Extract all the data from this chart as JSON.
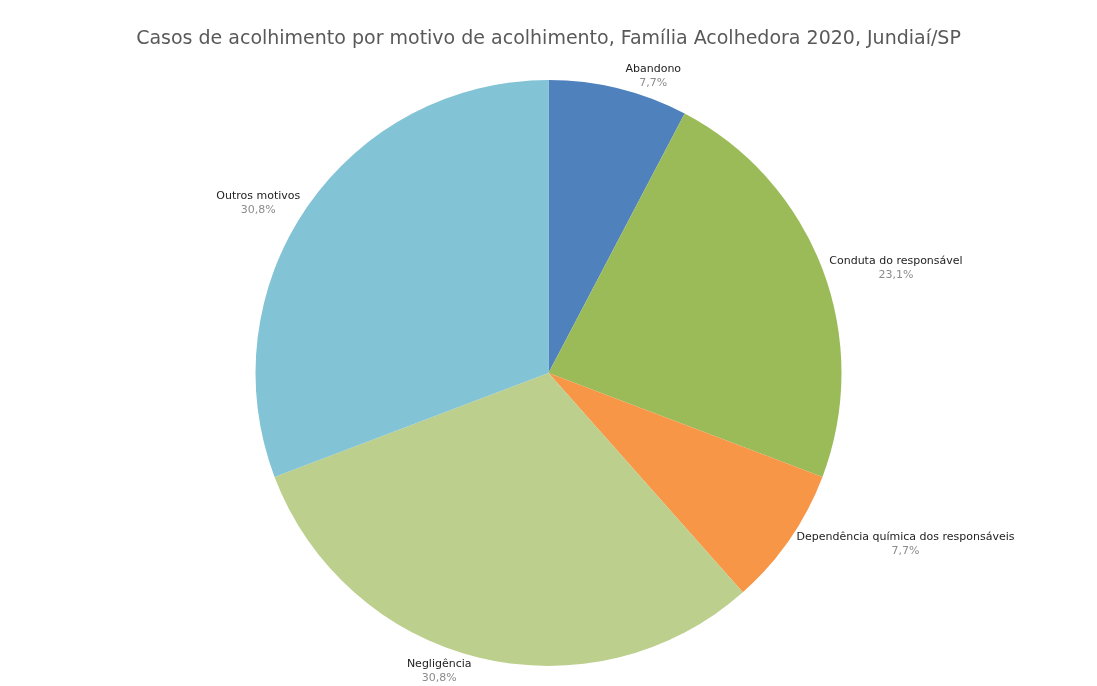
{
  "chart_data": {
    "type": "pie",
    "title": "Casos de acolhimento por motivo de acolhimento, Família Acolhedora 2020, Jundiaí/SP",
    "categories": [
      "Abandono",
      "Conduta do responsável",
      "Dependência química dos responsáveis",
      "Negligência",
      "Outros motivos"
    ],
    "values": [
      7.7,
      23.1,
      7.7,
      30.8,
      30.8
    ],
    "value_labels": [
      "7,7%",
      "23,1%",
      "7,7%",
      "30,8%",
      "30,8%"
    ],
    "colors": [
      "#4f81bd",
      "#9bbb59",
      "#f79646",
      "#bccf8c",
      "#82c3d5"
    ],
    "legend": false
  }
}
